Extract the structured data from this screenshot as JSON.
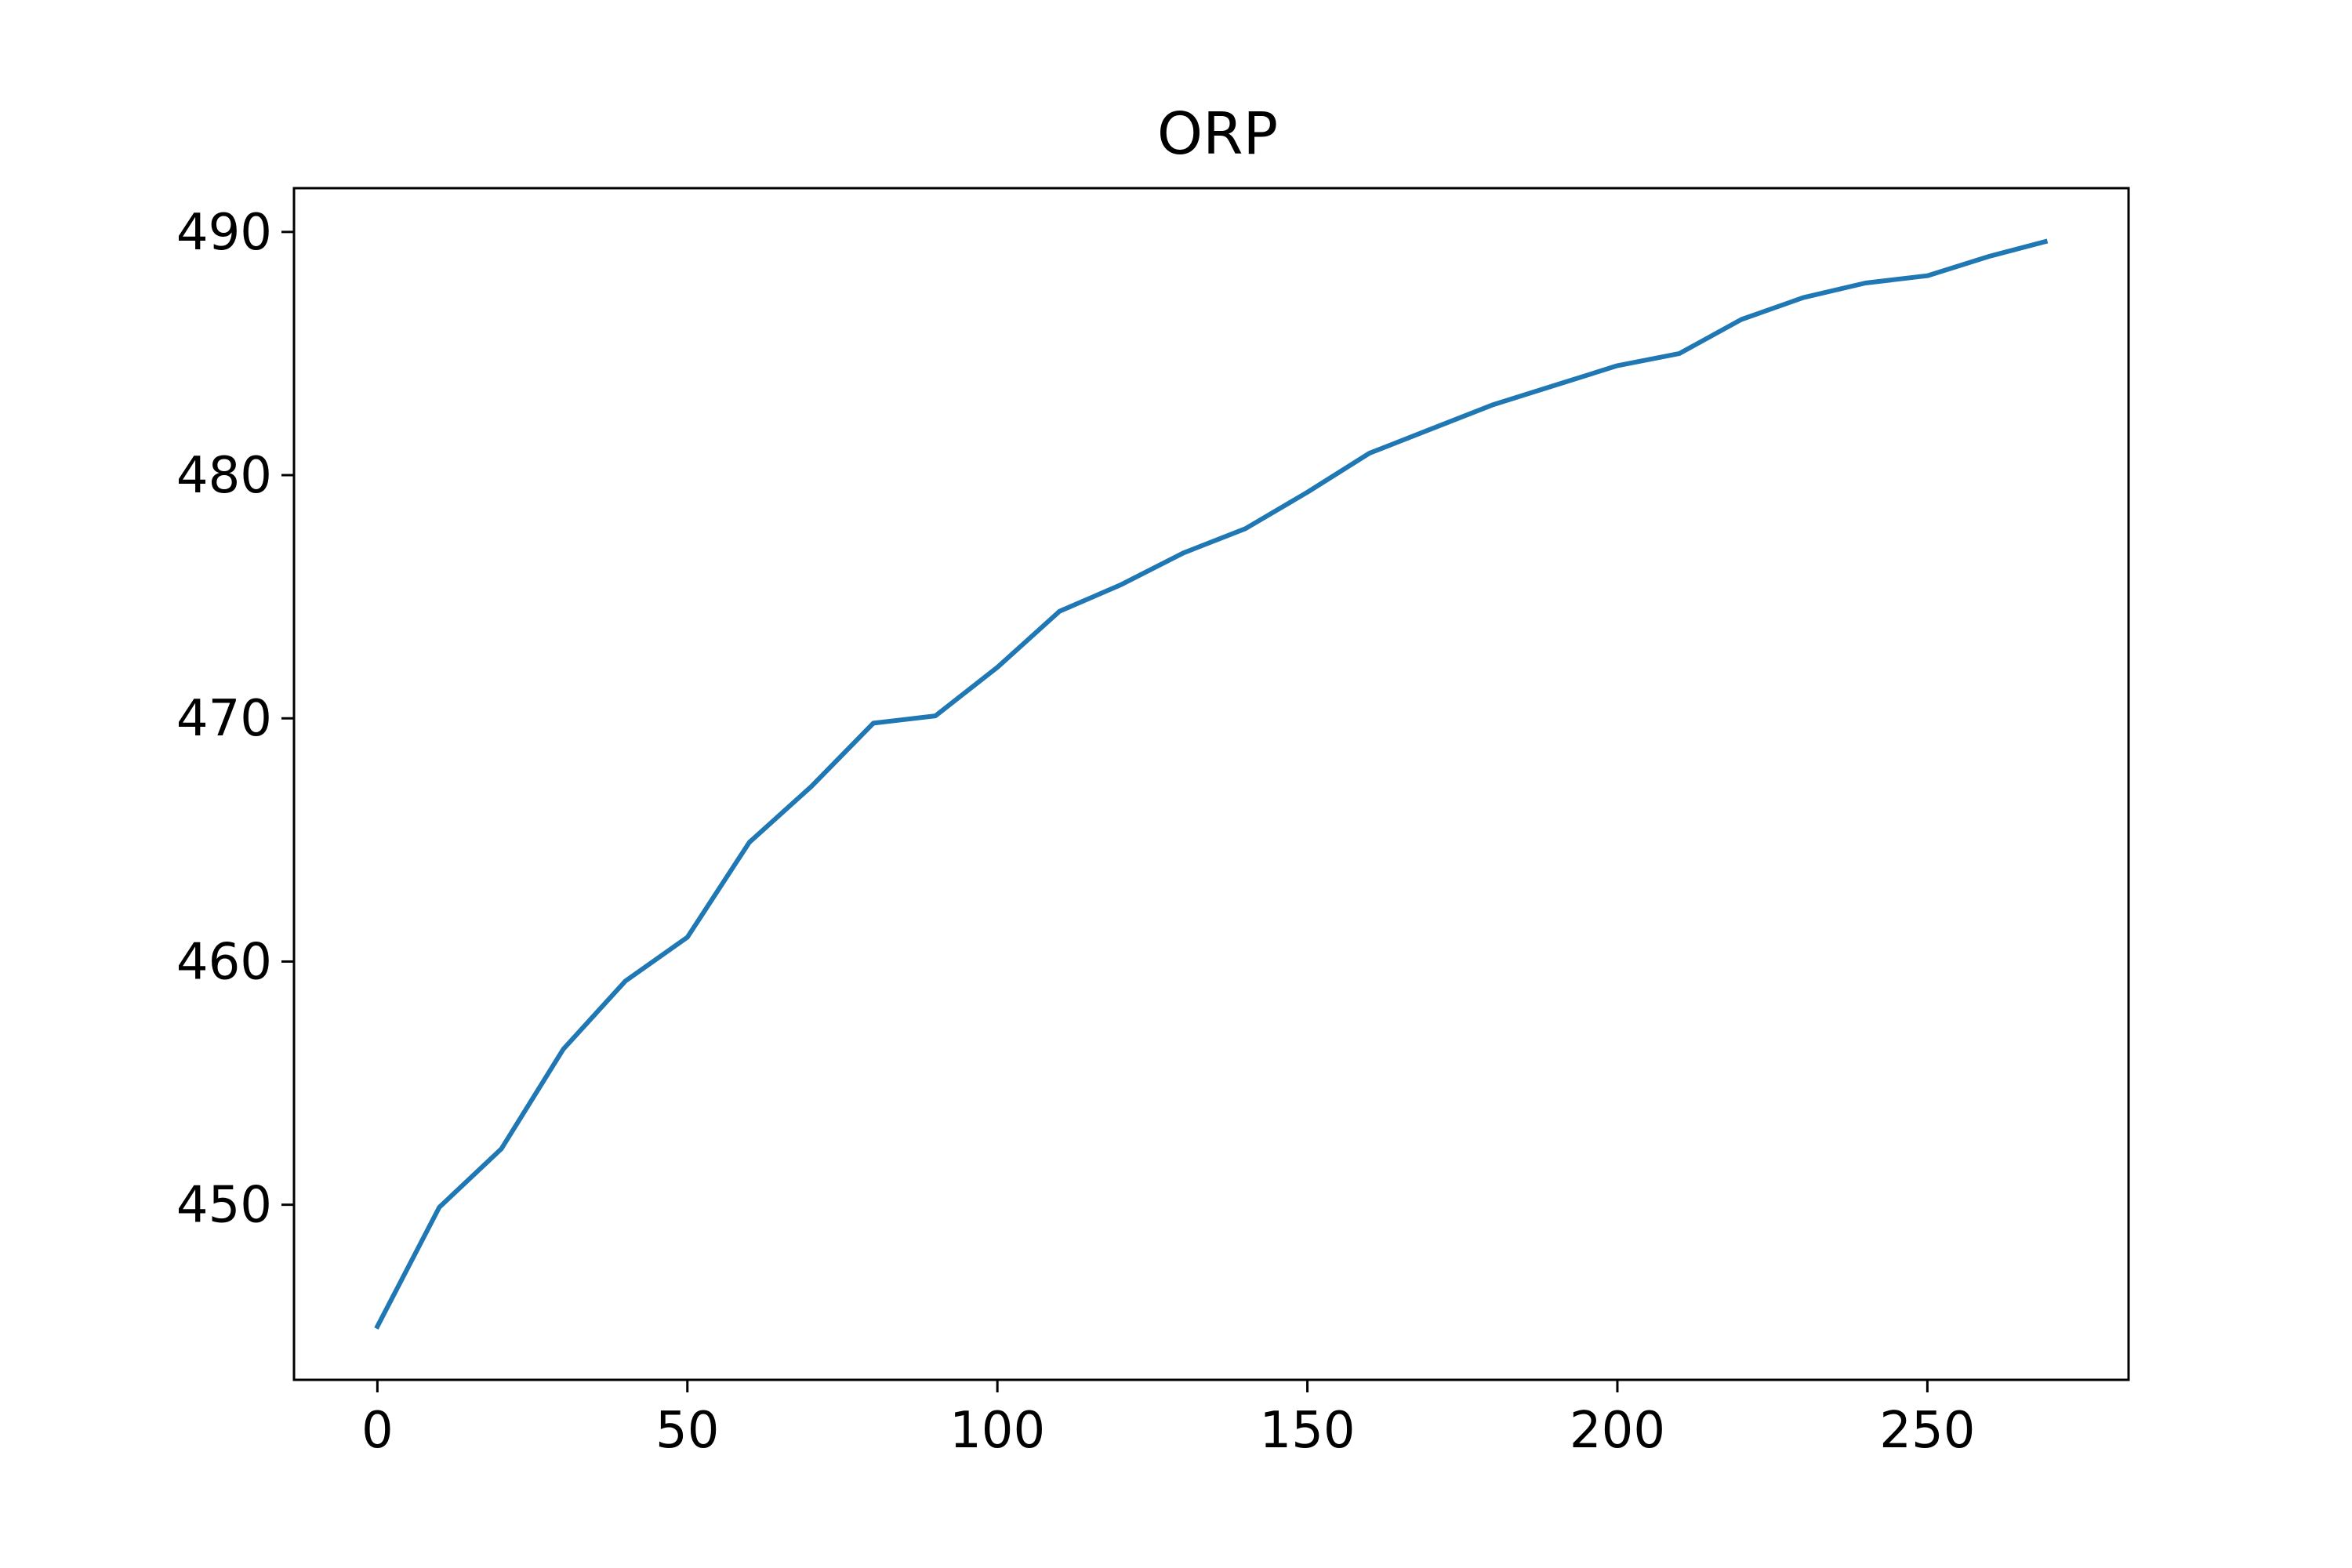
{
  "chart_data": {
    "type": "line",
    "title": "ORP",
    "xlabel": "",
    "ylabel": "",
    "xlim": [
      -13.45,
      282.45
    ],
    "ylim": [
      442.8,
      491.8
    ],
    "grid": false,
    "legend": "none",
    "xticks": [
      0,
      50,
      100,
      150,
      200,
      250
    ],
    "yticks": [
      450,
      460,
      470,
      480,
      490
    ],
    "series": [
      {
        "color": "#1f77b4",
        "x": [
          0,
          10,
          20,
          30,
          40,
          50,
          60,
          70,
          80,
          90,
          100,
          110,
          120,
          130,
          140,
          150,
          160,
          170,
          180,
          190,
          200,
          210,
          220,
          230,
          240,
          250,
          260,
          269
        ],
        "y": [
          445.0,
          449.9,
          452.3,
          456.4,
          459.2,
          461.0,
          464.9,
          467.2,
          469.8,
          470.1,
          472.1,
          474.4,
          475.5,
          476.8,
          477.8,
          479.3,
          480.9,
          481.9,
          482.9,
          483.7,
          484.5,
          485.0,
          486.4,
          487.3,
          487.9,
          488.2,
          489.0,
          489.6
        ]
      }
    ]
  }
}
